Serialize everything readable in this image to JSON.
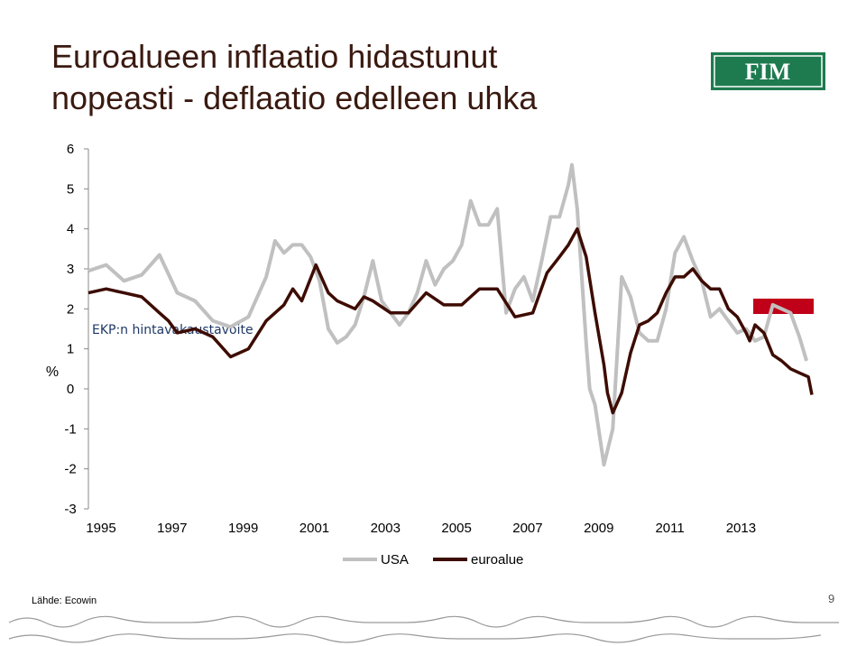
{
  "title": "Euroalueen inflaatio hidastunut nopeasti - deflaatio edelleen uhka",
  "logo": "FIM",
  "source": "Lähde: Ecowin",
  "page_number": "9",
  "chart_data": {
    "type": "line",
    "ylabel": "%",
    "annotation": "EKP:n hintavakaustavoite",
    "xlim": [
      1995,
      2015.4
    ],
    "xticks": [
      1995,
      1997,
      1999,
      2001,
      2003,
      2005,
      2007,
      2009,
      2011,
      2013
    ],
    "ylim": [
      -3,
      6
    ],
    "yticks": [
      -3,
      -2,
      -1,
      0,
      1,
      2,
      3,
      4,
      5,
      6
    ],
    "grid": false,
    "legend": "bottom",
    "series": [
      {
        "name": "USA",
        "color": "#c0c0c0",
        "x": [
          1995,
          1995.5,
          1996,
          1996.5,
          1997,
          1997.5,
          1998,
          1998.5,
          1999,
          1999.5,
          2000,
          2000.25,
          2000.5,
          2000.75,
          2001,
          2001.25,
          2001.5,
          2001.75,
          2002,
          2002.25,
          2002.5,
          2002.75,
          2003,
          2003.25,
          2003.5,
          2003.75,
          2004,
          2004.25,
          2004.5,
          2004.75,
          2005,
          2005.25,
          2005.5,
          2005.75,
          2006,
          2006.25,
          2006.5,
          2006.75,
          2007,
          2007.25,
          2007.5,
          2007.75,
          2008,
          2008.25,
          2008.5,
          2008.6,
          2008.75,
          2009,
          2009.1,
          2009.25,
          2009.5,
          2009.75,
          2010,
          2010.25,
          2010.5,
          2010.75,
          2011,
          2011.25,
          2011.5,
          2011.75,
          2012,
          2012.25,
          2012.5,
          2012.75,
          2013,
          2013.25,
          2013.5,
          2013.75,
          2014,
          2014.25,
          2014.5,
          2014.75,
          2015,
          2015.2
        ],
        "values": [
          2.95,
          3.1,
          2.7,
          2.85,
          3.35,
          2.4,
          2.2,
          1.7,
          1.55,
          1.8,
          2.8,
          3.7,
          3.4,
          3.6,
          3.6,
          3.3,
          2.7,
          1.5,
          1.15,
          1.3,
          1.6,
          2.3,
          3.2,
          2.2,
          1.9,
          1.6,
          1.9,
          2.4,
          3.2,
          2.6,
          3.0,
          3.2,
          3.6,
          4.7,
          4.1,
          4.1,
          4.5,
          1.9,
          2.5,
          2.8,
          2.2,
          3.2,
          4.3,
          4.3,
          5.1,
          5.6,
          4.5,
          1.15,
          0.0,
          -0.4,
          -1.9,
          -1.0,
          2.8,
          2.3,
          1.4,
          1.2,
          1.2,
          2.0,
          3.4,
          3.8,
          3.2,
          2.7,
          1.8,
          2.0,
          1.7,
          1.4,
          1.5,
          1.2,
          1.3,
          2.1,
          2.0,
          1.9,
          1.3,
          0.7
        ]
      },
      {
        "name": "euroalue",
        "color": "#3d0c02",
        "x": [
          1995,
          1995.5,
          1996,
          1996.5,
          1997,
          1997.25,
          1997.5,
          1998,
          1998.5,
          1999,
          1999.5,
          2000,
          2000.5,
          2000.75,
          2001,
          2001.4,
          2001.75,
          2002,
          2002.5,
          2002.75,
          2003,
          2003.5,
          2004,
          2004.5,
          2005,
          2005.5,
          2005.75,
          2006,
          2006.5,
          2007,
          2007.5,
          2007.9,
          2008.25,
          2008.5,
          2008.75,
          2009,
          2009.25,
          2009.5,
          2009.6,
          2009.75,
          2010,
          2010.25,
          2010.5,
          2010.75,
          2011,
          2011.25,
          2011.5,
          2011.75,
          2012,
          2012.25,
          2012.5,
          2012.75,
          2013,
          2013.25,
          2013.5,
          2013.6,
          2013.75,
          2014,
          2014.25,
          2014.5,
          2014.75,
          2015,
          2015.25,
          2015.35
        ],
        "values": [
          2.4,
          2.5,
          2.4,
          2.3,
          1.9,
          1.7,
          1.4,
          1.5,
          1.3,
          0.8,
          1.0,
          1.7,
          2.1,
          2.5,
          2.2,
          3.1,
          2.4,
          2.2,
          2.0,
          2.3,
          2.2,
          1.9,
          1.9,
          2.4,
          2.1,
          2.1,
          2.3,
          2.5,
          2.5,
          1.8,
          1.9,
          2.9,
          3.3,
          3.6,
          4.0,
          3.3,
          1.9,
          0.6,
          -0.1,
          -0.6,
          -0.1,
          0.9,
          1.6,
          1.7,
          1.9,
          2.4,
          2.8,
          2.8,
          3.0,
          2.7,
          2.5,
          2.5,
          2.0,
          1.8,
          1.4,
          1.2,
          1.6,
          1.4,
          0.85,
          0.7,
          0.5,
          0.4,
          0.3,
          -0.15
        ]
      }
    ]
  }
}
